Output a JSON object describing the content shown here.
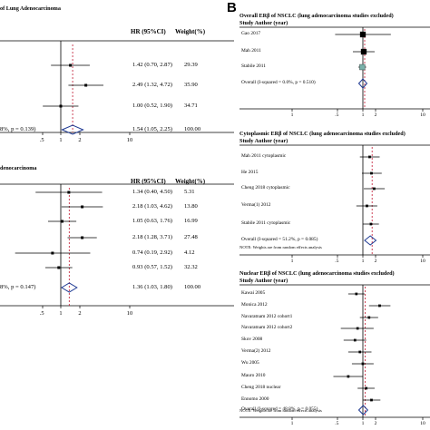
{
  "panel_b_letter": "B",
  "colors": {
    "line": "#000000",
    "diamond": "#1f3a93",
    "dash": "#c0152f",
    "marker": "#7ab1aa"
  },
  "chart_data": [
    {
      "type": "forest",
      "title": "of Lung Adenocarcinoma",
      "header_stat": "HR (95%CI)",
      "header_weight": "Weight(%)",
      "rows": [
        {
          "label": "",
          "hr": 1.42,
          "lo": 0.7,
          "hi": 2.87,
          "stat": "1.42 (0.70, 2.87)",
          "weight": "29.39"
        },
        {
          "label": "",
          "hr": 2.49,
          "lo": 1.32,
          "hi": 4.72,
          "stat": "2.49 (1.32, 4.72)",
          "weight": "35.90"
        },
        {
          "label": "",
          "hr": 1.0,
          "lo": 0.52,
          "hi": 1.9,
          "stat": "1.00 (0.52, 1.90)",
          "weight": "34.71"
        }
      ],
      "overall": {
        "label": "8%, p = 0.139)",
        "hr": 1.54,
        "lo": 1.05,
        "hi": 2.25,
        "stat": "1.54 (1.05, 2.25)",
        "weight": "100.00"
      },
      "ticks": [
        ".5",
        "1",
        "2",
        "10"
      ]
    },
    {
      "type": "forest",
      "title": "denocarcinoma",
      "header_stat": "HR (95%CI)",
      "header_weight": "Weight(%)",
      "rows": [
        {
          "label": "",
          "hr": 1.34,
          "lo": 0.4,
          "hi": 4.5,
          "stat": "1.34 (0.40, 4.50)",
          "weight": "5.31"
        },
        {
          "label": "",
          "hr": 2.18,
          "lo": 1.03,
          "hi": 4.62,
          "stat": "2.18 (1.03, 4.62)",
          "weight": "13.80"
        },
        {
          "label": "",
          "hr": 1.05,
          "lo": 0.63,
          "hi": 1.76,
          "stat": "1.05 (0.63, 1.76)",
          "weight": "16.99"
        },
        {
          "label": "",
          "hr": 2.18,
          "lo": 1.28,
          "hi": 3.71,
          "stat": "2.18 (1.28, 3.71)",
          "weight": "27.48"
        },
        {
          "label": "",
          "hr": 0.74,
          "lo": 0.19,
          "hi": 2.92,
          "stat": "0.74 (0.19, 2.92)",
          "weight": "4.12"
        },
        {
          "label": "",
          "hr": 0.93,
          "lo": 0.57,
          "hi": 1.52,
          "stat": "0.93 (0.57, 1.52)",
          "weight": "32.32"
        }
      ],
      "overall": {
        "label": "8%, p = 0.147)",
        "hr": 1.36,
        "lo": 1.03,
        "hi": 1.8,
        "stat": "1.36 (1.03, 1.80)",
        "weight": "100.00"
      },
      "ticks": [
        ".5",
        "1",
        "2",
        "10"
      ]
    },
    {
      "type": "forest",
      "title": "Overall ERβ of NSCLC (lung adenocarcinoma studies excluded)",
      "header": "Study Author (year)",
      "rows": [
        {
          "label": "Gao 2017",
          "hr": 1.0,
          "lo": 0.22,
          "hi": 4.6
        },
        {
          "label": "Mah 2011",
          "hr": 1.05,
          "lo": 0.58,
          "hi": 1.9
        },
        {
          "label": "Stabile 2011",
          "hr": 0.97,
          "lo": 0.78,
          "hi": 1.2
        }
      ],
      "overall": {
        "label": "Overall  (I-squared = 0.0%, p = 0.510)",
        "hr": 1.0,
        "lo": 0.8,
        "hi": 1.25
      },
      "ticks": [
        "1",
        ".5",
        "1",
        "2",
        "10"
      ]
    },
    {
      "type": "forest",
      "title": "Cytoplasmic ERβ of NSCLC (lung adenocarcinoma studies excluded)",
      "header": "Study Author (year)",
      "rows": [
        {
          "label": "Mah 2011 cytoplasmic",
          "hr": 1.45,
          "lo": 0.85,
          "hi": 2.5
        },
        {
          "label": "He 2015",
          "hr": 1.6,
          "lo": 0.95,
          "hi": 2.8
        },
        {
          "label": "Cheng 2018 cytoplasmic",
          "hr": 1.85,
          "lo": 1.05,
          "hi": 3.3
        },
        {
          "label": "Verma(1) 2012",
          "hr": 1.25,
          "lo": 0.7,
          "hi": 2.2
        },
        {
          "label": "Stabile 2011 cytoplasmic",
          "hr": 1.55,
          "lo": 1.0,
          "hi": 2.4
        }
      ],
      "overall": {
        "label": "Overall  (I-squared = 51.2%, p = 0.085)",
        "hr": 1.5,
        "lo": 1.1,
        "hi": 2.05
      },
      "note": "NOTE: Weights are from random effects analysis",
      "ticks": [
        "1",
        ".5",
        "1",
        "2",
        "10"
      ]
    },
    {
      "type": "forest",
      "title": "Nuclear ERβ of NSCLC (lung adenocarcinoma studies excluded)",
      "header": "Study Author (year)",
      "rows": [
        {
          "label": "Kawai 2005",
          "hr": 0.7,
          "lo": 0.45,
          "hi": 1.1
        },
        {
          "label": "Monica 2012",
          "hr": 2.5,
          "lo": 1.4,
          "hi": 4.5
        },
        {
          "label": "Navaratnam 2012 cohort1",
          "hr": 1.4,
          "lo": 0.85,
          "hi": 2.3
        },
        {
          "label": "Navaratnam 2012 cohort2",
          "hr": 0.75,
          "lo": 0.3,
          "hi": 1.8
        },
        {
          "label": "Skov 2008",
          "hr": 0.65,
          "lo": 0.35,
          "hi": 1.2
        },
        {
          "label": "Verma(2) 2012",
          "hr": 0.85,
          "lo": 0.45,
          "hi": 1.6
        },
        {
          "label": "Wu 2005",
          "hr": 1.0,
          "lo": 0.55,
          "hi": 1.8
        },
        {
          "label": "Mauro 2010",
          "hr": 0.45,
          "lo": 0.2,
          "hi": 1.0
        },
        {
          "label": "Cheng 2018 nuclear",
          "hr": 1.2,
          "lo": 0.75,
          "hi": 1.9
        },
        {
          "label": "Ennomo 2000",
          "hr": 1.6,
          "lo": 1.0,
          "hi": 2.6
        }
      ],
      "overall": {
        "label": "Overall  (I-squared = 48.8%, p = 0.055)",
        "hr": 1.02,
        "lo": 0.8,
        "hi": 1.3
      },
      "note": "NOTE: Weights are from random effects analysis",
      "ticks": [
        "1",
        ".5",
        "1",
        "2",
        "10"
      ]
    }
  ]
}
